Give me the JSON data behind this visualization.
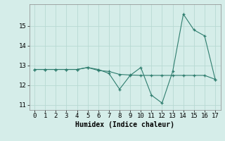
{
  "line1_x": [
    0,
    1,
    2,
    3,
    4,
    5,
    6,
    7,
    8,
    9,
    10,
    11,
    12,
    13,
    14,
    15,
    16,
    17
  ],
  "line1_y": [
    12.8,
    12.8,
    12.8,
    12.8,
    12.8,
    12.9,
    12.8,
    12.6,
    11.8,
    12.5,
    12.9,
    11.5,
    11.1,
    12.7,
    15.6,
    14.8,
    14.5,
    12.3
  ],
  "line2_x": [
    0,
    1,
    2,
    3,
    4,
    5,
    6,
    7,
    8,
    9,
    10,
    11,
    12,
    13,
    14,
    15,
    16,
    17
  ],
  "line2_y": [
    12.8,
    12.8,
    12.8,
    12.8,
    12.8,
    12.9,
    12.75,
    12.7,
    12.55,
    12.52,
    12.5,
    12.5,
    12.5,
    12.5,
    12.5,
    12.5,
    12.5,
    12.3
  ],
  "line_color": "#2e7d6e",
  "bg_color": "#d5ede9",
  "grid_color": "#b8d9d3",
  "xlabel": "Humidex (Indice chaleur)",
  "xlim": [
    -0.5,
    17.5
  ],
  "ylim": [
    10.75,
    16.1
  ],
  "yticks": [
    11,
    12,
    13,
    14,
    15
  ],
  "xticks": [
    0,
    1,
    2,
    3,
    4,
    5,
    6,
    7,
    8,
    9,
    10,
    11,
    12,
    13,
    14,
    15,
    16,
    17
  ],
  "label_fontsize": 7,
  "tick_fontsize": 6.5
}
